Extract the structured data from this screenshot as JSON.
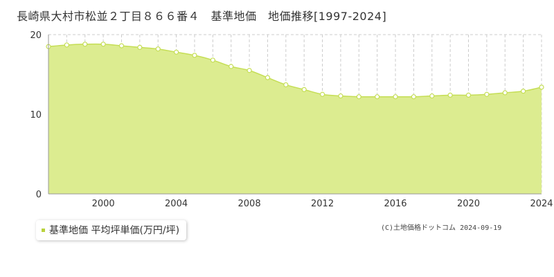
{
  "title": "長崎県大村市松並２丁目８６６番４　基準地価　地価推移[1997-2024]",
  "legend": {
    "label": "基準地価 平均坪単価(万円/坪)"
  },
  "copyright": "(C)土地価格ドットコム 2024-09-19",
  "colors": {
    "area_fill": "#dcec90",
    "line": "#c5de55",
    "point_fill": "#ffffff",
    "grid": "#cccccc",
    "legend_marker": "#b9d23c"
  },
  "chart_data": {
    "type": "area",
    "title": "長崎県大村市松並２丁目８６６番４　基準地価　地価推移[1997-2024]",
    "xlabel": "",
    "ylabel": "",
    "xlim": [
      1997,
      2024
    ],
    "ylim": [
      0,
      20
    ],
    "yticks": [
      0,
      10,
      20
    ],
    "xticks": [
      2000,
      2004,
      2008,
      2012,
      2016,
      2020,
      2024
    ],
    "grid": true,
    "legend_position": "bottom-left",
    "series": [
      {
        "name": "基準地価 平均坪単価(万円/坪)",
        "x": [
          1997,
          1998,
          1999,
          2000,
          2001,
          2002,
          2003,
          2004,
          2005,
          2006,
          2007,
          2008,
          2009,
          2010,
          2011,
          2012,
          2013,
          2014,
          2015,
          2016,
          2017,
          2018,
          2019,
          2020,
          2021,
          2022,
          2023,
          2024
        ],
        "values": [
          18.5,
          18.7,
          18.8,
          18.8,
          18.6,
          18.4,
          18.2,
          17.8,
          17.4,
          16.8,
          16.0,
          15.5,
          14.6,
          13.7,
          13.1,
          12.5,
          12.3,
          12.2,
          12.2,
          12.2,
          12.2,
          12.3,
          12.4,
          12.4,
          12.5,
          12.7,
          12.9,
          13.4
        ]
      }
    ]
  }
}
